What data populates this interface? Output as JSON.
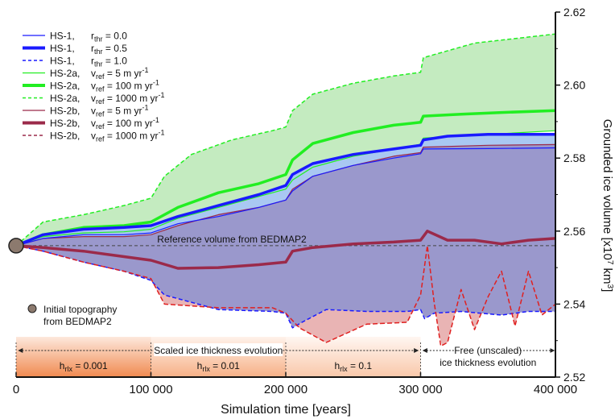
{
  "chart_data": {
    "type": "line",
    "xlabel": "Simulation time [years]",
    "ylabel_main": "Grounded ice volume [x10",
    "ylabel_exp1": "7",
    "ylabel_mid": " km",
    "ylabel_exp2": "3",
    "ylabel_end": "]",
    "xlim": [
      0,
      400000
    ],
    "ylim": [
      2.52,
      2.62
    ],
    "x_ticks": [
      0,
      100000,
      200000,
      300000,
      400000
    ],
    "x_tick_labels": [
      "0",
      "100 000",
      "200 000",
      "300 000",
      "400 000"
    ],
    "y_ticks": [
      2.52,
      2.54,
      2.56,
      2.58,
      2.6,
      2.62
    ],
    "y_tick_labels": [
      "2.52",
      "2.54",
      "2.56",
      "2.58",
      "2.60",
      "2.62"
    ],
    "legend": [
      {
        "prefix": "HS-1,",
        "var": "r",
        "sub": "thr",
        "value": " = 0.0",
        "sup": "",
        "color": "#1a1aff",
        "width": 1.2,
        "dash": ""
      },
      {
        "prefix": "HS-1,",
        "var": "r",
        "sub": "thr",
        "value": " = 0.5",
        "sup": "",
        "color": "#1a1aff",
        "width": 4,
        "dash": ""
      },
      {
        "prefix": "HS-1,",
        "var": "r",
        "sub": "thr",
        "value": " = 1.0",
        "sup": "",
        "color": "#1a1aff",
        "width": 1.5,
        "dash": "4,3"
      },
      {
        "prefix": "HS-2a,",
        "var": "v",
        "sub": "ref",
        "value": " =  5 m yr",
        "sup": "-1",
        "color": "#22ee22",
        "width": 1.2,
        "dash": ""
      },
      {
        "prefix": "HS-2a,",
        "var": "v",
        "sub": "ref",
        "value": " =  100 m yr",
        "sup": "-1",
        "color": "#22ee22",
        "width": 4,
        "dash": ""
      },
      {
        "prefix": "HS-2a,",
        "var": "v",
        "sub": "ref",
        "value": " =  1000 m yr",
        "sup": "-1",
        "color": "#22ee22",
        "width": 1.5,
        "dash": "4,3"
      },
      {
        "prefix": "HS-2b,",
        "var": "v",
        "sub": "ref",
        "value": " =  5 m yr",
        "sup": "-1",
        "color": "#9b2a4a",
        "width": 1.2,
        "dash": ""
      },
      {
        "prefix": "HS-2b,",
        "var": "v",
        "sub": "ref",
        "value": " =  100 m yr",
        "sup": "-1",
        "color": "#9b2a4a",
        "width": 4,
        "dash": ""
      },
      {
        "prefix": "HS-2b,",
        "var": "v",
        "sub": "ref",
        "value": " =  1000 m yr",
        "sup": "-1",
        "color": "#9b2a4a",
        "width": 1.5,
        "dash": "4,3"
      }
    ],
    "reference_label": "Reference volume from BEDMAP2",
    "reference_value": 2.556,
    "initial_point": {
      "x": 0,
      "y": 2.556,
      "label_line1": "Initial topography",
      "label_line2": "from BEDMAP2"
    },
    "phase_scaled_label": "Scaled ice thickness evolution",
    "phase_free_line1": "Free (unscaled)",
    "phase_free_line2": "ice thickness evolution",
    "hrix_prefix": "h",
    "hrix_sub": "rlx",
    "hrix": [
      {
        "x0": 0,
        "x1": 100000,
        "value": " = 0.001"
      },
      {
        "x0": 100000,
        "x1": 200000,
        "value": " = 0.01"
      },
      {
        "x0": 200000,
        "x1": 300000,
        "value": " = 0.1"
      }
    ],
    "series": [
      {
        "name": "HS-1, rthr = 0.0",
        "color": "#1a1aff",
        "width": 1.2,
        "dash": "",
        "x": [
          0,
          20000,
          50000,
          80000,
          100000,
          120000,
          150000,
          180000,
          200000,
          205000,
          220000,
          250000,
          280000,
          300000,
          302000,
          350000,
          400000
        ],
        "y": [
          2.556,
          2.558,
          2.559,
          2.559,
          2.5595,
          2.562,
          2.564,
          2.5665,
          2.5685,
          2.571,
          2.575,
          2.578,
          2.58,
          2.5812,
          2.5825,
          2.5826,
          2.5828
        ]
      },
      {
        "name": "HS-1, rthr = 0.5",
        "color": "#1a1aff",
        "width": 3.5,
        "dash": "",
        "x": [
          0,
          20000,
          50000,
          80000,
          100000,
          120000,
          150000,
          180000,
          200000,
          205000,
          220000,
          250000,
          280000,
          300000,
          302000,
          320000,
          350000,
          380000,
          400000
        ],
        "y": [
          2.556,
          2.559,
          2.5605,
          2.561,
          2.5615,
          2.564,
          2.567,
          2.57,
          2.5725,
          2.5755,
          2.5785,
          2.581,
          2.5825,
          2.5835,
          2.585,
          2.586,
          2.5865,
          2.5865,
          2.5865
        ]
      },
      {
        "name": "HS-1, rthr = 1.0",
        "color": "#1a1aff",
        "width": 1.5,
        "dash": "5,3",
        "x": [
          0,
          20000,
          50000,
          80000,
          100000,
          110000,
          150000,
          190000,
          200000,
          205000,
          212000,
          230000,
          260000,
          290000,
          300000,
          303000,
          310000,
          330000,
          360000,
          380000,
          400000
        ],
        "y": [
          2.556,
          2.5545,
          2.5515,
          2.549,
          2.5465,
          2.5425,
          2.5385,
          2.538,
          2.5375,
          2.5335,
          2.535,
          2.5385,
          2.538,
          2.538,
          2.5385,
          2.536,
          2.5375,
          2.538,
          2.537,
          2.538,
          2.538
        ]
      },
      {
        "name": "HS-2a, vref = 5 m yr-1",
        "color": "#22ee22",
        "width": 1.2,
        "dash": "",
        "x": [
          0,
          20000,
          50000,
          80000,
          100000,
          120000,
          150000,
          180000,
          200000,
          205000,
          220000,
          250000,
          280000,
          300000,
          302000,
          350000,
          400000
        ],
        "y": [
          2.556,
          2.5585,
          2.5595,
          2.5598,
          2.5605,
          2.5635,
          2.5665,
          2.5695,
          2.5715,
          2.574,
          2.5775,
          2.5805,
          2.5825,
          2.5838,
          2.5855,
          2.5865,
          2.5875
        ]
      },
      {
        "name": "HS-2a, vref = 100 m yr-1",
        "color": "#22ee22",
        "width": 3.5,
        "dash": "",
        "x": [
          0,
          20000,
          50000,
          80000,
          100000,
          120000,
          150000,
          180000,
          200000,
          205000,
          220000,
          250000,
          280000,
          300000,
          302000,
          330000,
          360000,
          400000
        ],
        "y": [
          2.556,
          2.559,
          2.561,
          2.5615,
          2.5625,
          2.5665,
          2.5705,
          2.573,
          2.5755,
          2.5795,
          2.584,
          2.587,
          2.589,
          2.5898,
          2.5915,
          2.592,
          2.5925,
          2.593
        ]
      },
      {
        "name": "HS-2a, vref = 1000 m yr-1",
        "color": "#22ee22",
        "width": 1.5,
        "dash": "5,3",
        "x": [
          0,
          20000,
          50000,
          80000,
          100000,
          110000,
          130000,
          160000,
          190000,
          200000,
          205000,
          220000,
          250000,
          280000,
          300000,
          302000,
          340000,
          400000
        ],
        "y": [
          2.556,
          2.5625,
          2.5645,
          2.567,
          2.569,
          2.575,
          2.581,
          2.585,
          2.5875,
          2.5885,
          2.593,
          2.5975,
          2.6005,
          2.6025,
          2.6035,
          2.6075,
          2.6115,
          2.614
        ]
      },
      {
        "name": "HS-2b, vref = 5 m yr-1",
        "color": "#9b2a4a",
        "width": 1.2,
        "dash": "",
        "x": [
          0,
          20000,
          50000,
          80000,
          100000,
          120000,
          150000,
          180000,
          200000,
          205000,
          220000,
          250000,
          280000,
          300000,
          302000,
          350000,
          400000
        ],
        "y": [
          2.556,
          2.558,
          2.5585,
          2.5585,
          2.559,
          2.5615,
          2.5645,
          2.5665,
          2.5685,
          2.5715,
          2.575,
          2.578,
          2.5805,
          2.5815,
          2.583,
          2.5835,
          2.5837
        ]
      },
      {
        "name": "HS-2b, vref = 100 m yr-1",
        "color": "#9b2a4a",
        "width": 3.5,
        "dash": "",
        "x": [
          0,
          20000,
          50000,
          80000,
          100000,
          120000,
          150000,
          180000,
          200000,
          205000,
          220000,
          250000,
          280000,
          300000,
          305000,
          320000,
          340000,
          360000,
          380000,
          400000
        ],
        "y": [
          2.556,
          2.5555,
          2.5545,
          2.553,
          2.552,
          2.5498,
          2.55,
          2.5508,
          2.5515,
          2.5545,
          2.5555,
          2.5565,
          2.557,
          2.5575,
          2.56,
          2.5575,
          2.5575,
          2.5565,
          2.5575,
          2.558
        ]
      },
      {
        "name": "HS-2b, vref = 1000 m yr-1",
        "color": "#e02020",
        "width": 1.5,
        "dash": "6,3",
        "x": [
          0,
          20000,
          50000,
          80000,
          100000,
          110000,
          150000,
          190000,
          200000,
          210000,
          230000,
          260000,
          290000,
          300000,
          305000,
          310000,
          315000,
          320000,
          330000,
          340000,
          350000,
          360000,
          370000,
          380000,
          390000,
          400000
        ],
        "y": [
          2.556,
          2.5545,
          2.5515,
          2.549,
          2.547,
          2.54,
          2.539,
          2.539,
          2.5375,
          2.5335,
          2.5295,
          2.5345,
          2.535,
          2.5425,
          2.556,
          2.5405,
          2.5285,
          2.5295,
          2.544,
          2.533,
          2.542,
          2.549,
          2.534,
          2.549,
          2.537,
          2.54
        ]
      }
    ]
  }
}
